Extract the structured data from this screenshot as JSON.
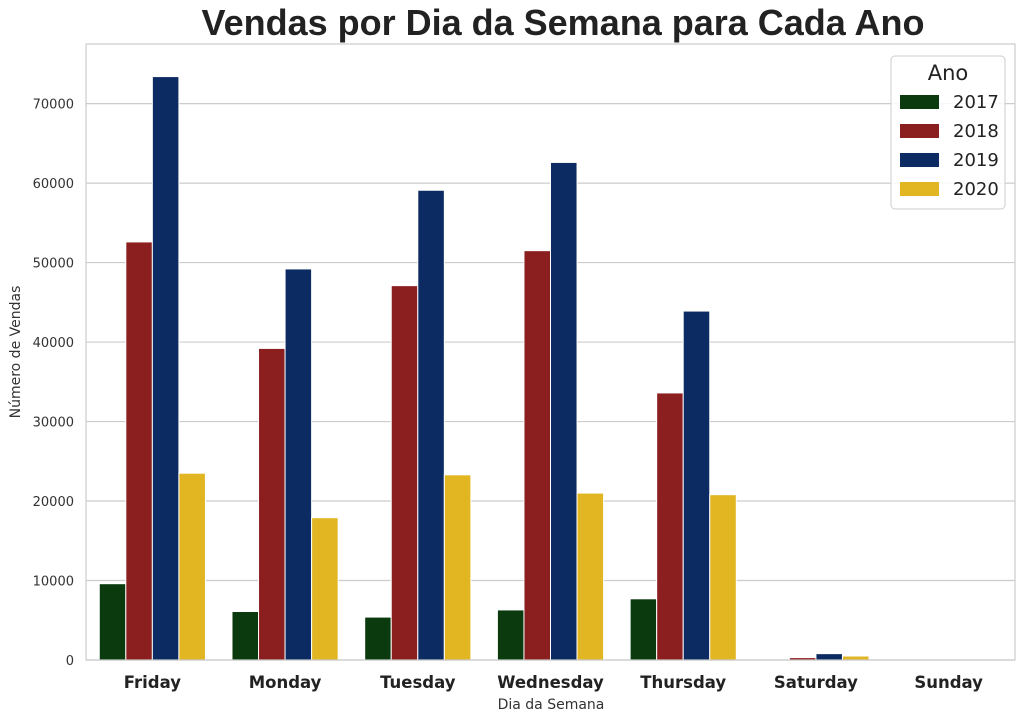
{
  "chart_data": {
    "type": "bar",
    "title": "Vendas por Dia da Semana para Cada Ano",
    "xlabel": "Dia da Semana",
    "ylabel": "Número de Vendas",
    "categories": [
      "Friday",
      "Monday",
      "Tuesday",
      "Wednesday",
      "Thursday",
      "Saturday",
      "Sunday"
    ],
    "series": [
      {
        "name": "2017",
        "color": "#0b3a0f",
        "values": [
          9600,
          6100,
          5400,
          6300,
          7700,
          0,
          0
        ]
      },
      {
        "name": "2018",
        "color": "#8b1e1e",
        "values": [
          52600,
          39200,
          47100,
          51500,
          33600,
          300,
          0
        ]
      },
      {
        "name": "2019",
        "color": "#0c2b62",
        "values": [
          73400,
          49200,
          59100,
          62600,
          43900,
          800,
          0
        ]
      },
      {
        "name": "2020",
        "color": "#e2b623",
        "values": [
          23500,
          17900,
          23300,
          21000,
          20800,
          500,
          0
        ]
      }
    ],
    "ylim": [
      0,
      77500
    ],
    "yticks": [
      0,
      10000,
      20000,
      30000,
      40000,
      50000,
      60000,
      70000
    ],
    "grid": "horizontal",
    "legend": {
      "title": "Ano",
      "placement": "top-right"
    }
  }
}
